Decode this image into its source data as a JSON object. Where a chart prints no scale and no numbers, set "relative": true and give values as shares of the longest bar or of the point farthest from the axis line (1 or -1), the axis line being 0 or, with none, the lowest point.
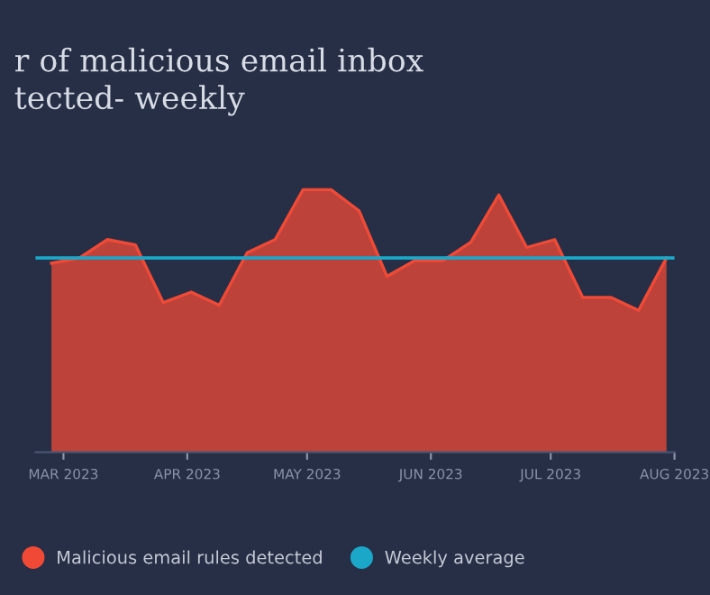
{
  "chart_data": {
    "type": "area",
    "title": "r of malicious email inbox\ntected- weekly",
    "relative": true,
    "x": [
      "2023-02-26",
      "2023-03-05",
      "2023-03-12",
      "2023-03-19",
      "2023-03-26",
      "2023-04-02",
      "2023-04-09",
      "2023-04-16",
      "2023-04-23",
      "2023-04-30",
      "2023-05-07",
      "2023-05-14",
      "2023-05-21",
      "2023-05-28",
      "2023-06-04",
      "2023-06-11",
      "2023-06-18",
      "2023-06-25",
      "2023-07-02",
      "2023-07-09",
      "2023-07-16",
      "2023-07-23",
      "2023-07-30"
    ],
    "xlim": [
      "2023-02-22",
      "2023-08-01"
    ],
    "xticks": [
      {
        "value": "2023-03-01",
        "label": "MAR 2023"
      },
      {
        "value": "2023-04-01",
        "label": "APR 2023"
      },
      {
        "value": "2023-05-01",
        "label": "MAY 2023"
      },
      {
        "value": "2023-06-01",
        "label": "JUN 2023"
      },
      {
        "value": "2023-07-01",
        "label": "JUL 2023"
      },
      {
        "value": "2023-08-01",
        "label": "AUG 2023"
      }
    ],
    "series": [
      {
        "name": "Malicious email rules detected",
        "color": "#f04a37",
        "values": [
          0.72,
          0.74,
          0.81,
          0.79,
          0.57,
          0.61,
          0.56,
          0.76,
          0.81,
          1,
          1,
          0.92,
          0.67,
          0.73,
          0.73,
          0.8,
          0.98,
          0.78,
          0.81,
          0.59,
          0.59,
          0.54,
          0.74
        ]
      }
    ],
    "ref_lines": [
      {
        "axis": "y",
        "value": 0.74,
        "label": "Weekly average",
        "color": "#1ba8c8"
      }
    ],
    "legend": "bottom left"
  }
}
